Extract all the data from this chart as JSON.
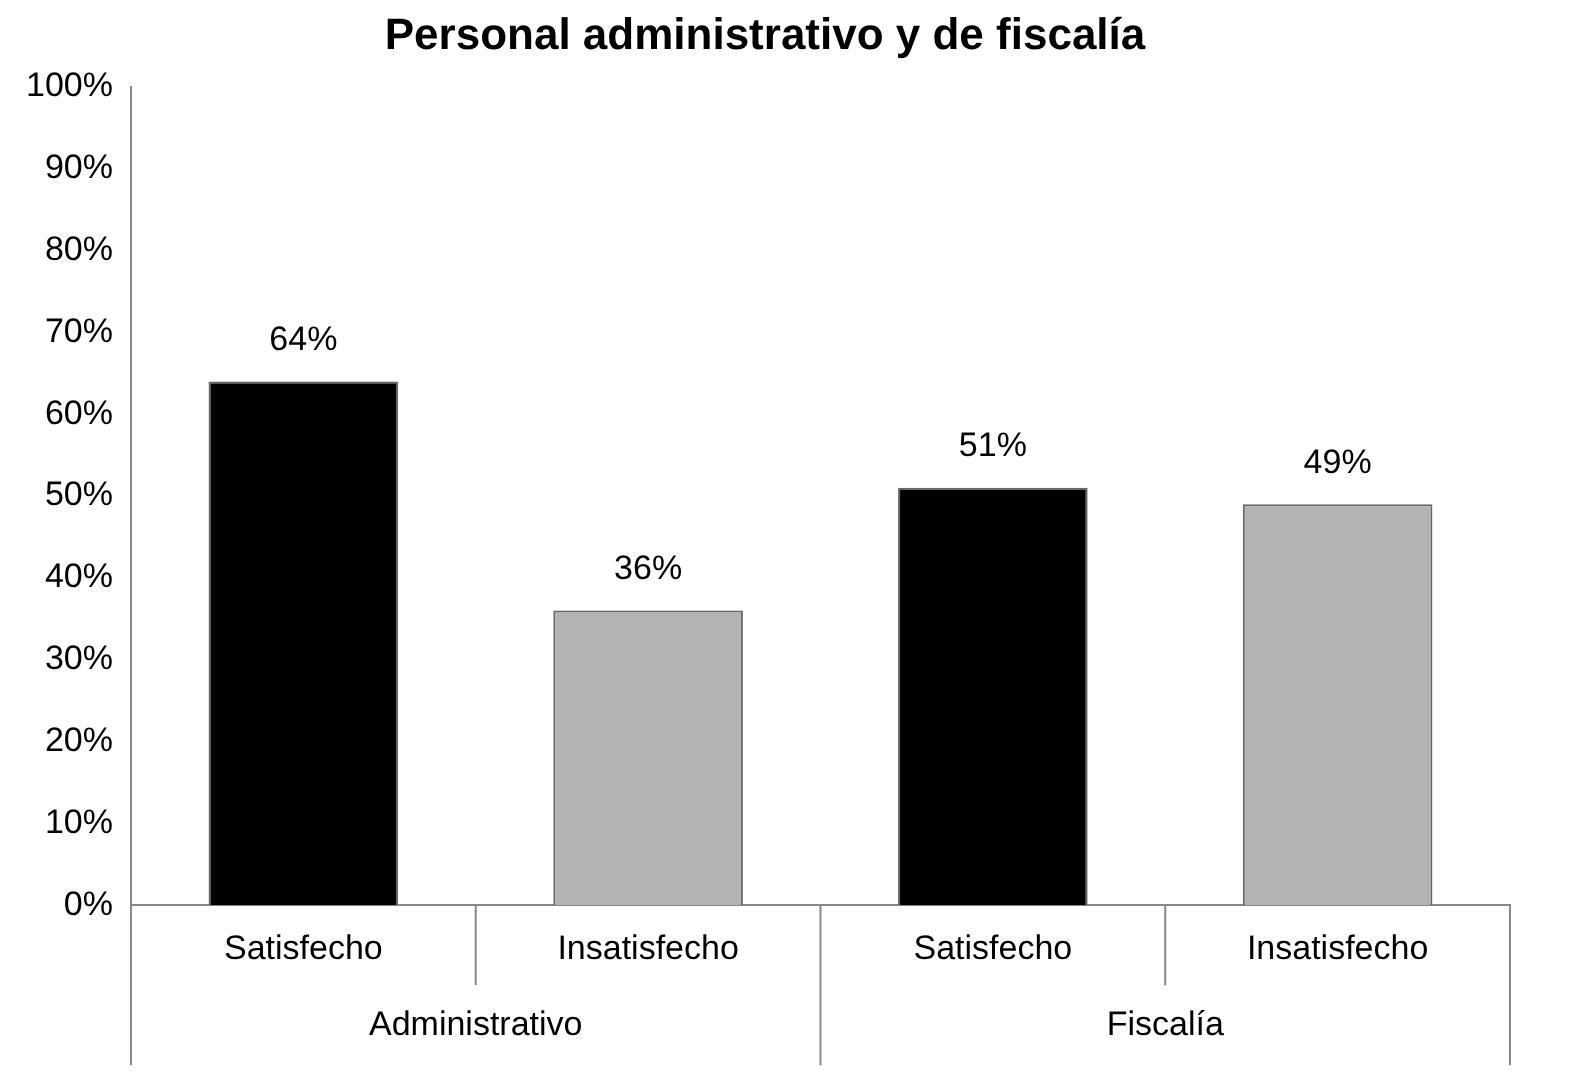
{
  "chart_data": {
    "type": "bar",
    "title": "Personal administrativo y de fiscalía",
    "categories": [
      "Satisfecho",
      "Insatisfecho",
      "Satisfecho",
      "Insatisfecho"
    ],
    "values": [
      64,
      36,
      51,
      49
    ],
    "colors": [
      "#000000",
      "#b3b3b3",
      "#000000",
      "#b3b3b3"
    ],
    "value_labels": [
      "64%",
      "36%",
      "51%",
      "49%"
    ],
    "ylim": [
      0,
      100
    ],
    "yticks": [
      {
        "value": 0,
        "label": "0%"
      },
      {
        "value": 10,
        "label": "10%"
      },
      {
        "value": 20,
        "label": "20%"
      },
      {
        "value": 30,
        "label": "30%"
      },
      {
        "value": 40,
        "label": "40%"
      },
      {
        "value": 50,
        "label": "50%"
      },
      {
        "value": 60,
        "label": "60%"
      },
      {
        "value": 70,
        "label": "70%"
      },
      {
        "value": 80,
        "label": "80%"
      },
      {
        "value": 90,
        "label": "90%"
      },
      {
        "value": 100,
        "label": "100%"
      }
    ],
    "annotations": [
      "Administrativo",
      "Fiscalía"
    ],
    "grid": false,
    "legend": false
  }
}
